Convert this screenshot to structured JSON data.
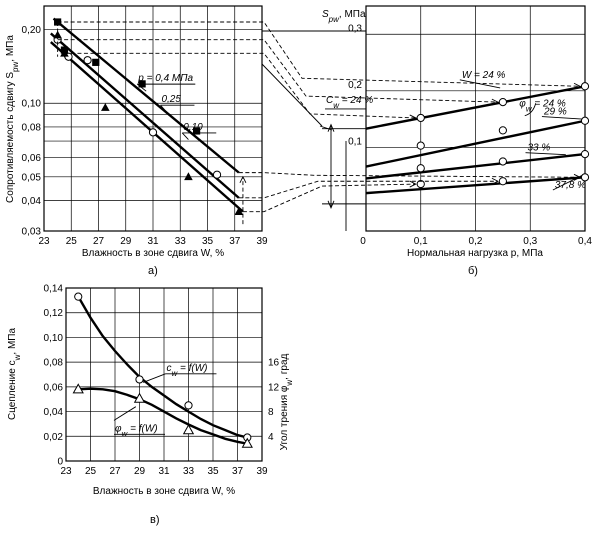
{
  "chart_data": [
    {
      "type": "scatter",
      "panel_label": "а)",
      "title": "",
      "xlabel": "Влажность в зоне сдвига W, %",
      "ylabel": "Сопротивляемость сдвигу S",
      "ylabel_sub": "pw",
      "ylabel_unit": ", МПа",
      "x_scale": "linear",
      "y_scale": "log",
      "xlim": [
        23,
        39
      ],
      "ylim": [
        0.03,
        0.25
      ],
      "x_ticks": [
        23,
        25,
        27,
        29,
        31,
        33,
        35,
        37,
        39
      ],
      "y_ticks": [
        0.03,
        0.04,
        0.05,
        0.06,
        0.08,
        0.1,
        0.2
      ],
      "y_tick_labels": [
        "0,03",
        "0,04",
        "0,05",
        "0,06",
        "0,08",
        "0,10",
        "0,20"
      ],
      "series": [
        {
          "name": "p = 0,4 МПа",
          "marker": "square",
          "points": [
            [
              24,
              0.215
            ],
            [
              26.8,
              0.147
            ],
            [
              30.2,
              0.12
            ],
            [
              34.2,
              0.077
            ],
            [
              24.5,
              0.165
            ]
          ],
          "fit": [
            [
              23.7,
              0.222
            ],
            [
              37.3,
              0.052
            ]
          ]
        },
        {
          "name": "0,25",
          "marker": "circle",
          "points": [
            [
              24,
              0.182
            ],
            [
              26.2,
              0.15
            ],
            [
              31,
              0.076
            ],
            [
              35.7,
              0.051
            ],
            [
              24.8,
              0.155
            ]
          ],
          "fit": [
            [
              23.5,
              0.193
            ],
            [
              37.3,
              0.041
            ]
          ]
        },
        {
          "name": "0,10",
          "marker": "triangle",
          "points": [
            [
              24.5,
              0.16
            ],
            [
              27.5,
              0.096
            ],
            [
              33.6,
              0.05
            ],
            [
              37.3,
              0.036
            ],
            [
              24,
              0.19
            ]
          ],
          "fit": [
            [
              23.5,
              0.178
            ],
            [
              37.6,
              0.036
            ]
          ]
        }
      ]
    },
    {
      "type": "line",
      "panel_label": "б)",
      "title": "",
      "xlabel": "Нормальная нагрузка p, МПа",
      "ylabel": "S",
      "ylabel_sub": "pw",
      "ylabel_unit": ", МПа",
      "xlim": [
        0,
        0.4
      ],
      "ylim": [
        -0.048,
        0.35
      ],
      "x_ticks": [
        0,
        0.1,
        0.2,
        0.3,
        0.4
      ],
      "x_tick_labels": [
        "0",
        "0,1",
        "0,2",
        "0,3",
        "0,4"
      ],
      "y_ticks": [
        0.1,
        0.2,
        0.3
      ],
      "y_tick_labels": [
        "0,1",
        "0,2",
        "0,3"
      ],
      "series": [
        {
          "name": "W = 24 %",
          "intercept": 0.133,
          "points": [
            [
              0.1,
              0.152
            ],
            [
              0.25,
              0.18
            ],
            [
              0.4,
              0.208
            ]
          ]
        },
        {
          "name": "29 %",
          "intercept": 0.066,
          "points": [
            [
              0.1,
              0.103
            ],
            [
              0.25,
              0.13
            ],
            [
              0.4,
              0.147
            ]
          ]
        },
        {
          "name": "33 %",
          "intercept": 0.045,
          "points": [
            [
              0.1,
              0.063
            ],
            [
              0.25,
              0.075
            ],
            [
              0.4,
              0.088
            ]
          ]
        },
        {
          "name": "37,8 %",
          "intercept": 0.019,
          "points": [
            [
              0.1,
              0.035
            ],
            [
              0.25,
              0.04
            ],
            [
              0.4,
              0.047
            ]
          ]
        }
      ],
      "annotations": {
        "cw": {
          "label": "C",
          "sub": "w",
          "text": " = 24 %"
        },
        "phi": {
          "label": "φ",
          "sub": "w",
          "text": " = 24 %"
        }
      }
    },
    {
      "type": "line",
      "panel_label": "в)",
      "title": "",
      "xlabel": "Влажность в зоне сдвига W, %",
      "ylabel": "Сцепление c",
      "ylabel_sub": "w",
      "ylabel_unit": ", МПа",
      "ylabel_right": "Угол трения φ",
      "ylabel_right_sub": "w",
      "ylabel_right_unit": ", град",
      "xlim": [
        23,
        39
      ],
      "ylim": [
        0,
        0.14
      ],
      "x_ticks": [
        23,
        25,
        27,
        29,
        31,
        33,
        35,
        37,
        39
      ],
      "y_ticks": [
        0,
        0.02,
        0.04,
        0.06,
        0.08,
        0.1,
        0.12,
        0.14
      ],
      "y_tick_labels": [
        "0",
        "0,02",
        "0,04",
        "0,06",
        "0,08",
        "0,10",
        "0,12",
        "0,14"
      ],
      "y2_ticks": [
        4,
        8,
        12,
        16
      ],
      "y2_per_left_unit": 200,
      "series": [
        {
          "name_parts": [
            "c",
            "w",
            " = f(W)"
          ],
          "axis": "left",
          "marker": "circle",
          "points": [
            [
              24,
              0.133
            ],
            [
              29,
              0.066
            ],
            [
              33,
              0.045
            ],
            [
              37.8,
              0.019
            ]
          ],
          "curve": [
            [
              24,
              0.133
            ],
            [
              25,
              0.116
            ],
            [
              26,
              0.101
            ],
            [
              27,
              0.089
            ],
            [
              28,
              0.078
            ],
            [
              29,
              0.068
            ],
            [
              30,
              0.06
            ],
            [
              31,
              0.053
            ],
            [
              32,
              0.046
            ],
            [
              33,
              0.04
            ],
            [
              34,
              0.034
            ],
            [
              35,
              0.029
            ],
            [
              36,
              0.025
            ],
            [
              37,
              0.021
            ],
            [
              37.8,
              0.019
            ]
          ]
        },
        {
          "name_parts": [
            "φ",
            "w",
            " = f(W)"
          ],
          "axis": "right",
          "marker": "triangle",
          "points": [
            [
              24,
              11.6
            ],
            [
              29,
              10.1
            ],
            [
              33,
              5.0
            ],
            [
              37.8,
              2.8
            ]
          ],
          "curve": [
            [
              24,
              11.6
            ],
            [
              25,
              11.7
            ],
            [
              26,
              11.6
            ],
            [
              27,
              11.3
            ],
            [
              28,
              10.7
            ],
            [
              29,
              10.0
            ],
            [
              30,
              9.1
            ],
            [
              31,
              8.0
            ],
            [
              32,
              6.9
            ],
            [
              33,
              5.9
            ],
            [
              34,
              5.0
            ],
            [
              35,
              4.3
            ],
            [
              36,
              3.6
            ],
            [
              37,
              3.1
            ],
            [
              37.8,
              2.8
            ]
          ]
        }
      ]
    }
  ]
}
